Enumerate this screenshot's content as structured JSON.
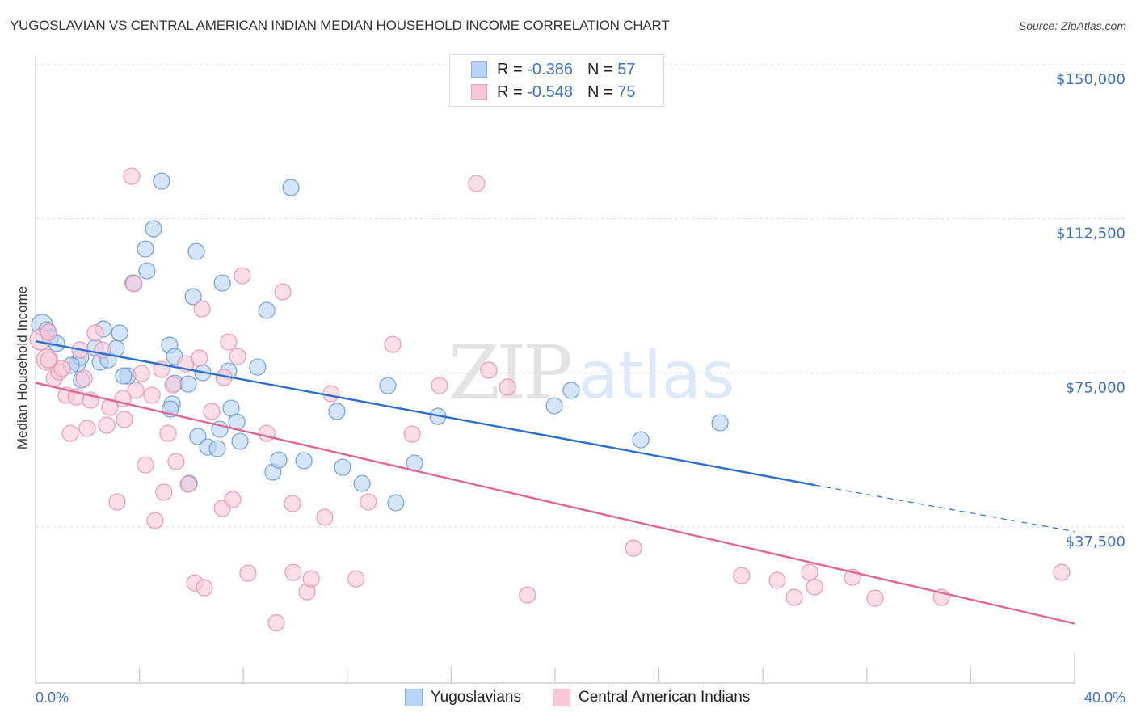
{
  "header": {
    "title": "YUGOSLAVIAN VS CENTRAL AMERICAN INDIAN MEDIAN HOUSEHOLD INCOME CORRELATION CHART",
    "source": "Source: ZipAtlas.com"
  },
  "watermark": {
    "zip": "ZIP",
    "atlas": "atlas"
  },
  "legend": {
    "rows": [
      {
        "r_label": "R =",
        "r_value": "-0.386",
        "n_label": "N =",
        "n_value": "57"
      },
      {
        "r_label": "R =",
        "r_value": "-0.548",
        "n_label": "N =",
        "n_value": "75"
      }
    ]
  },
  "colors": {
    "yugoslavians_fill": "#b8d3f5",
    "yugoslavians_stroke": "#5b8fd6",
    "yugoslavians_line": "#2a6fd0",
    "cai_fill": "#f9c8d8",
    "cai_stroke": "#e88aa8",
    "cai_line": "#e06590",
    "tick_text": "#3d72cc"
  },
  "chart_data": {
    "type": "scatter",
    "title": "YUGOSLAVIAN VS CENTRAL AMERICAN INDIAN MEDIAN HOUSEHOLD INCOME CORRELATION CHART",
    "xlabel": "",
    "ylabel": "Median Household Income",
    "xlim": [
      0,
      40
    ],
    "ylim": [
      0,
      155000
    ],
    "x_tick_labels": [
      "0.0%",
      "40.0%"
    ],
    "x_ticks_minor": [
      0,
      4,
      8,
      12,
      16,
      20,
      24,
      28,
      32,
      36,
      40
    ],
    "y_ticks": [
      37500,
      75000,
      112500,
      150000
    ],
    "y_tick_labels": [
      "$37,500",
      "$75,000",
      "$112,500",
      "$150,000"
    ],
    "grid": true,
    "legend_position": "top-center",
    "series": [
      {
        "name": "Yugoslavians",
        "r": -0.386,
        "n": 57,
        "trend": {
          "x0": 0,
          "y0": 82700,
          "x1": 30.0,
          "y1": 47700,
          "dashed_to_x": 40,
          "dashed_to_y": 36400
        },
        "points": [
          [
            0.25,
            86700,
            1
          ],
          [
            0.44,
            85480,
            0
          ],
          [
            0.56,
            83520,
            0
          ],
          [
            0.81,
            82140,
            0
          ],
          [
            1.62,
            77220,
            0
          ],
          [
            1.74,
            78790,
            0
          ],
          [
            1.77,
            73290,
            0
          ],
          [
            2.3,
            81150,
            0
          ],
          [
            2.49,
            77610,
            0
          ],
          [
            2.8,
            78200,
            0
          ],
          [
            3.11,
            80960,
            0
          ],
          [
            3.24,
            84700,
            0
          ],
          [
            3.55,
            74270,
            0
          ],
          [
            3.76,
            96890,
            0
          ],
          [
            4.23,
            105150,
            0
          ],
          [
            4.29,
            99840,
            0
          ],
          [
            4.54,
            110070,
            0
          ],
          [
            4.85,
            121670,
            0
          ],
          [
            5.16,
            81750,
            0
          ],
          [
            5.26,
            67390,
            0
          ],
          [
            5.35,
            78990,
            0
          ],
          [
            5.35,
            72500,
            0
          ],
          [
            5.19,
            66200,
            0
          ],
          [
            5.88,
            72300,
            0
          ],
          [
            6.07,
            93550,
            0
          ],
          [
            6.19,
            104560,
            0
          ],
          [
            6.25,
            59520,
            0
          ],
          [
            6.44,
            75060,
            0
          ],
          [
            6.63,
            56960,
            0
          ],
          [
            7.0,
            56570,
            0
          ],
          [
            7.09,
            61290,
            0
          ],
          [
            7.19,
            96890,
            0
          ],
          [
            7.43,
            75450,
            0
          ],
          [
            7.53,
            66400,
            0
          ],
          [
            7.75,
            63060,
            0
          ],
          [
            7.87,
            58340,
            0
          ],
          [
            8.55,
            76430,
            0
          ],
          [
            8.9,
            90200,
            0
          ],
          [
            9.14,
            50860,
            0
          ],
          [
            9.36,
            53810,
            0
          ],
          [
            9.83,
            120100,
            0
          ],
          [
            10.33,
            53620,
            0
          ],
          [
            11.6,
            65620,
            0
          ],
          [
            11.82,
            52040,
            0
          ],
          [
            12.57,
            48110,
            0
          ],
          [
            13.56,
            71910,
            0
          ],
          [
            13.87,
            43390,
            0
          ],
          [
            14.59,
            53030,
            0
          ],
          [
            15.49,
            64440,
            0
          ],
          [
            19.97,
            66990,
            0
          ],
          [
            20.62,
            70730,
            0
          ],
          [
            23.3,
            58730,
            0
          ],
          [
            26.35,
            62860,
            0
          ],
          [
            5.91,
            48110,
            0
          ],
          [
            3.39,
            74270,
            0
          ],
          [
            2.61,
            85680,
            0
          ],
          [
            1.37,
            76830,
            0
          ]
        ]
      },
      {
        "name": "Central American Indians",
        "r": -0.548,
        "n": 75,
        "trend": {
          "x0": 0,
          "y0": 72600,
          "x1": 40,
          "y1": 14000
        },
        "points": [
          [
            0.19,
            83130,
            1
          ],
          [
            0.44,
            78200,
            1
          ],
          [
            0.5,
            84900,
            0
          ],
          [
            0.72,
            73680,
            0
          ],
          [
            0.9,
            75260,
            0
          ],
          [
            1.03,
            76040,
            0
          ],
          [
            1.18,
            69550,
            0
          ],
          [
            1.34,
            60300,
            0
          ],
          [
            1.56,
            69160,
            0
          ],
          [
            1.71,
            80570,
            0
          ],
          [
            1.87,
            73680,
            0
          ],
          [
            1.99,
            61490,
            0
          ],
          [
            2.12,
            68370,
            0
          ],
          [
            2.3,
            84700,
            0
          ],
          [
            2.58,
            80560,
            0
          ],
          [
            2.74,
            62280,
            0
          ],
          [
            2.86,
            66610,
            0
          ],
          [
            3.14,
            43590,
            0
          ],
          [
            3.36,
            68760,
            0
          ],
          [
            3.42,
            63660,
            0
          ],
          [
            3.7,
            122850,
            0
          ],
          [
            3.79,
            96690,
            0
          ],
          [
            3.86,
            70730,
            0
          ],
          [
            4.08,
            74860,
            0
          ],
          [
            4.23,
            52630,
            0
          ],
          [
            4.48,
            69550,
            0
          ],
          [
            4.6,
            39070,
            0
          ],
          [
            4.85,
            75850,
            0
          ],
          [
            4.94,
            45960,
            0
          ],
          [
            5.1,
            60300,
            0
          ],
          [
            5.29,
            72110,
            0
          ],
          [
            5.41,
            53420,
            0
          ],
          [
            5.78,
            77220,
            0
          ],
          [
            5.88,
            47910,
            0
          ],
          [
            6.13,
            23910,
            0
          ],
          [
            6.31,
            78600,
            0
          ],
          [
            6.41,
            90590,
            0
          ],
          [
            6.5,
            22730,
            0
          ],
          [
            6.78,
            65620,
            0
          ],
          [
            7.19,
            42020,
            0
          ],
          [
            7.25,
            73880,
            0
          ],
          [
            7.43,
            82530,
            0
          ],
          [
            7.59,
            44180,
            0
          ],
          [
            7.78,
            78990,
            0
          ],
          [
            7.96,
            98660,
            0
          ],
          [
            8.18,
            26270,
            0
          ],
          [
            8.9,
            60300,
            0
          ],
          [
            9.27,
            14170,
            0
          ],
          [
            9.52,
            94730,
            0
          ],
          [
            9.89,
            43200,
            0
          ],
          [
            9.92,
            26470,
            0
          ],
          [
            10.45,
            21750,
            0
          ],
          [
            10.61,
            24900,
            0
          ],
          [
            11.13,
            39860,
            0
          ],
          [
            11.38,
            69940,
            0
          ],
          [
            12.34,
            24900,
            0
          ],
          [
            12.81,
            43590,
            0
          ],
          [
            13.75,
            81940,
            0
          ],
          [
            14.5,
            60100,
            0
          ],
          [
            15.55,
            71910,
            0
          ],
          [
            16.98,
            121080,
            0
          ],
          [
            17.45,
            75650,
            0
          ],
          [
            18.17,
            71520,
            0
          ],
          [
            18.94,
            20960,
            0
          ],
          [
            23.02,
            32370,
            0
          ],
          [
            27.18,
            25680,
            0
          ],
          [
            28.55,
            24510,
            0
          ],
          [
            29.21,
            20370,
            0
          ],
          [
            29.8,
            26470,
            0
          ],
          [
            29.99,
            22920,
            0
          ],
          [
            31.45,
            25290,
            0
          ],
          [
            32.32,
            20170,
            0
          ],
          [
            34.87,
            20370,
            0
          ],
          [
            39.5,
            26470,
            0
          ],
          [
            0.5,
            78200,
            0
          ]
        ]
      }
    ]
  },
  "bottom_legend": {
    "items": [
      {
        "label": "Yugoslavians"
      },
      {
        "label": "Central American Indians"
      }
    ]
  }
}
